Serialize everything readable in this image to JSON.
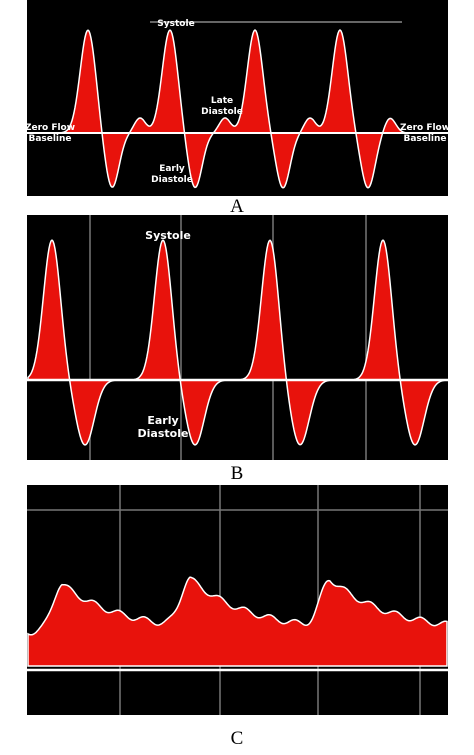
{
  "panels": [
    {
      "caption": "A",
      "systole": "Systole",
      "late_diastole": [
        "Late",
        "Diastole"
      ],
      "early_diastole": [
        "Early",
        "Diastole"
      ],
      "baseline_left": [
        "Zero Flow",
        "Baseline"
      ],
      "baseline_right": [
        "Zero Flow",
        "Baseline"
      ]
    },
    {
      "caption": "B",
      "systole": "Systole",
      "early_diastole": [
        "Early",
        "Diastole"
      ]
    },
    {
      "caption": "C"
    }
  ]
}
